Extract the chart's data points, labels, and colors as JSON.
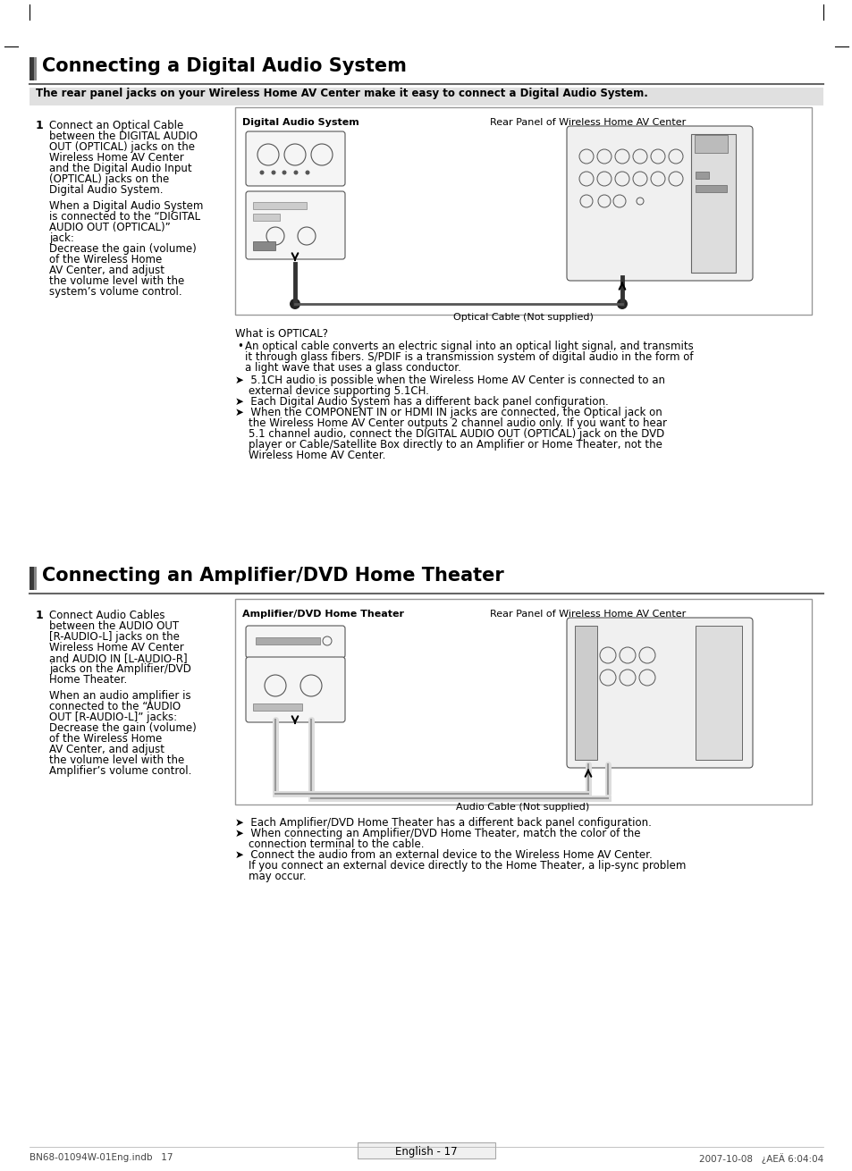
{
  "bg_color": "#ffffff",
  "section1_title": "Connecting a Digital Audio System",
  "section1_subtitle": "The rear panel jacks on your Wireless Home AV Center make it easy to connect a Digital Audio System.",
  "section1_step1_text_a": "Connect an Optical Cable\nbetween the DIGITAL AUDIO\nOUT (OPTICAL) jacks on the\nWireless Home AV Center\nand the Digital Audio Input\n(OPTICAL) jacks on the\nDigital Audio System.",
  "section1_step1_text_b": "When a Digital Audio System\nis connected to the “DIGITAL\nAUDIO OUT (OPTICAL)”\njack:\nDecrease the gain (volume)\nof the Wireless Home\nAV Center, and adjust\nthe volume level with the\nsystem’s volume control.",
  "section1_diagram_label1": "Digital Audio System",
  "section1_diagram_label2": "Rear Panel of Wireless Home AV Center",
  "section1_diagram_cable": "Optical Cable (Not supplied)",
  "section1_optical_title": "What is OPTICAL?",
  "section1_optical_bullet": "An optical cable converts an electric signal into an optical light signal, and transmits\nit through glass fibers. S/PDIF is a transmission system of digital audio in the form of\na light wave that uses a glass conductor.",
  "section1_arrow1a": "➤  5.1CH audio is possible when the Wireless Home AV Center is connected to an",
  "section1_arrow1b": "    external device supporting 5.1CH.",
  "section1_arrow2": "➤  Each Digital Audio System has a different back panel configuration.",
  "section1_arrow3a": "➤  When the COMPONENT IN or HDMI IN jacks are connected, the Optical jack on",
  "section1_arrow3b": "    the Wireless Home AV Center outputs 2 channel audio only. If you want to hear",
  "section1_arrow3c": "    5.1 channel audio, connect the DIGITAL AUDIO OUT (OPTICAL) jack on the DVD",
  "section1_arrow3d": "    player or Cable/Satellite Box directly to an Amplifier or Home Theater, not the",
  "section1_arrow3e": "    Wireless Home AV Center.",
  "section2_title": "Connecting an Amplifier/DVD Home Theater",
  "section2_step1_text_a": "Connect Audio Cables\nbetween the AUDIO OUT\n[R-AUDIO-L] jacks on the\nWireless Home AV Center\nand AUDIO IN [L-AUDIO-R]\njacks on the Amplifier/DVD\nHome Theater.",
  "section2_step1_text_b": "When an audio amplifier is\nconnected to the “AUDIO\nOUT [R-AUDIO-L]” jacks:\nDecrease the gain (volume)\nof the Wireless Home\nAV Center, and adjust\nthe volume level with the\nAmplifier’s volume control.",
  "section2_diagram_label1": "Amplifier/DVD Home Theater",
  "section2_diagram_label2": "Rear Panel of Wireless Home AV Center",
  "section2_diagram_cable": "Audio Cable (Not supplied)",
  "section2_arrow1": "➤  Each Amplifier/DVD Home Theater has a different back panel configuration.",
  "section2_arrow2a": "➤  When connecting an Amplifier/DVD Home Theater, match the color of the",
  "section2_arrow2b": "    connection terminal to the cable.",
  "section2_arrow3a": "➤  Connect the audio from an external device to the Wireless Home AV Center.",
  "section2_arrow3b": "    If you connect an external device directly to the Home Theater, a lip-sync problem",
  "section2_arrow3c": "    may occur.",
  "footer_left": "BN68-01094W-01Eng.indb   17",
  "footer_center": "English - 17",
  "footer_right": "2007-10-08   ¿AEÄ 6:04:04"
}
